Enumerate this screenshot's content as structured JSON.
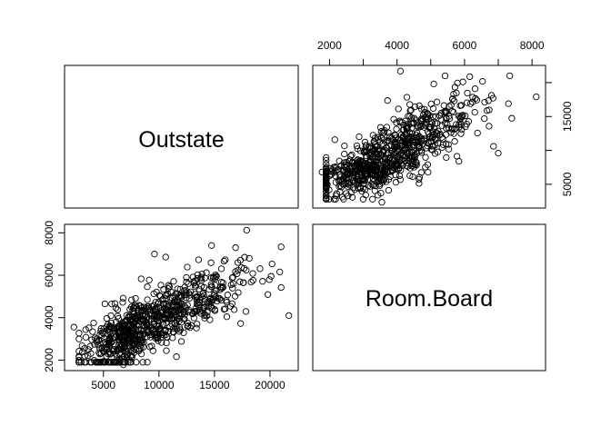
{
  "chart_data": {
    "type": "scatter",
    "kind": "pairs-matrix",
    "variables": [
      "Outstate",
      "Room.Board"
    ],
    "point_style": "open-circle",
    "point_color": "#000000",
    "grid": false,
    "outstate_range": [
      2340,
      21700
    ],
    "room_board_range": [
      1780,
      8124
    ],
    "outstate_ticks": [
      "5000",
      "10000",
      "15000",
      "20000"
    ],
    "room_board_ticks": [
      "2000",
      "4000",
      "6000",
      "8000"
    ],
    "outstate_ticks_right": [
      "5000",
      "15000"
    ],
    "outlier_points": [
      {
        "outstate": 21700,
        "room_board": 4100
      },
      {
        "outstate": 20100,
        "room_board": 5950
      },
      {
        "outstate": 17900,
        "room_board": 8124
      },
      {
        "outstate": 2340,
        "room_board": 3550
      },
      {
        "outstate": 6800,
        "room_board": 1780
      },
      {
        "outstate": 9600,
        "room_board": 7000
      },
      {
        "outstate": 16900,
        "room_board": 7300
      }
    ],
    "sample_count": 770
  }
}
